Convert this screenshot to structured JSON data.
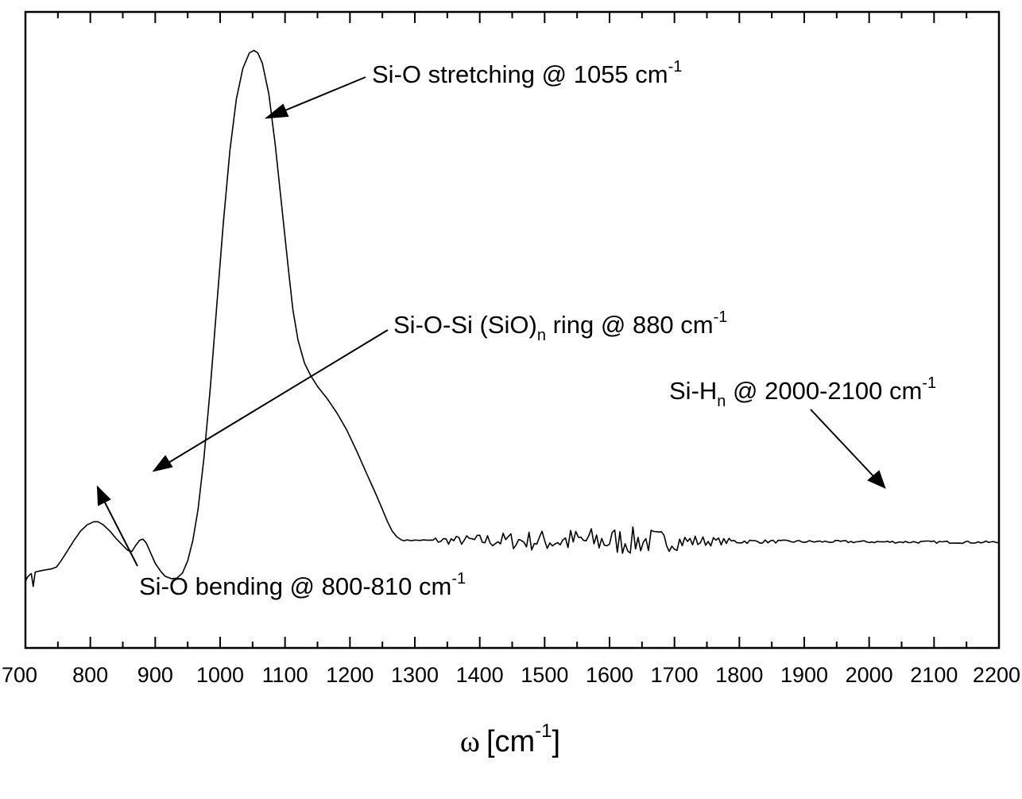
{
  "chart_data": {
    "type": "line",
    "xlabel": {
      "symbol": "ω",
      "bracket_open": "[cm",
      "exponent": "-1",
      "bracket_close": "]"
    },
    "ylabel": "",
    "xlim": [
      700,
      2200
    ],
    "ylim": [
      -0.12,
      1.12
    ],
    "x_ticks": [
      "700",
      "800",
      "900",
      "1000",
      "1100",
      "1200",
      "1300",
      "1400",
      "1500",
      "1600",
      "1700",
      "1800",
      "1900",
      "2000",
      "2100",
      "2200"
    ],
    "y_ticks_labeled": false,
    "grid": false,
    "series": [
      {
        "values": [
          [
            700,
            0.01
          ],
          [
            703,
            0.018
          ],
          [
            706,
            0.022
          ],
          [
            709,
            0.025
          ],
          [
            712,
            0.0
          ],
          [
            715,
            0.028
          ],
          [
            722,
            0.03
          ],
          [
            730,
            0.032
          ],
          [
            740,
            0.034
          ],
          [
            748,
            0.038
          ],
          [
            755,
            0.05
          ],
          [
            765,
            0.07
          ],
          [
            775,
            0.09
          ],
          [
            785,
            0.108
          ],
          [
            795,
            0.12
          ],
          [
            805,
            0.126
          ],
          [
            812,
            0.126
          ],
          [
            820,
            0.12
          ],
          [
            830,
            0.108
          ],
          [
            840,
            0.093
          ],
          [
            850,
            0.08
          ],
          [
            858,
            0.07
          ],
          [
            864,
            0.068
          ],
          [
            870,
            0.08
          ],
          [
            876,
            0.09
          ],
          [
            881,
            0.092
          ],
          [
            886,
            0.085
          ],
          [
            893,
            0.065
          ],
          [
            900,
            0.045
          ],
          [
            908,
            0.03
          ],
          [
            915,
            0.02
          ],
          [
            925,
            0.015
          ],
          [
            933,
            0.016
          ],
          [
            942,
            0.026
          ],
          [
            950,
            0.05
          ],
          [
            958,
            0.09
          ],
          [
            966,
            0.15
          ],
          [
            975,
            0.25
          ],
          [
            985,
            0.39
          ],
          [
            995,
            0.55
          ],
          [
            1005,
            0.71
          ],
          [
            1015,
            0.85
          ],
          [
            1025,
            0.95
          ],
          [
            1035,
            1.01
          ],
          [
            1045,
            1.04
          ],
          [
            1052,
            1.045
          ],
          [
            1058,
            1.04
          ],
          [
            1065,
            1.02
          ],
          [
            1075,
            0.96
          ],
          [
            1085,
            0.86
          ],
          [
            1095,
            0.74
          ],
          [
            1105,
            0.62
          ],
          [
            1112,
            0.54
          ],
          [
            1120,
            0.48
          ],
          [
            1130,
            0.435
          ],
          [
            1140,
            0.41
          ],
          [
            1150,
            0.39
          ],
          [
            1165,
            0.366
          ],
          [
            1180,
            0.338
          ],
          [
            1195,
            0.305
          ],
          [
            1210,
            0.265
          ],
          [
            1225,
            0.222
          ],
          [
            1240,
            0.18
          ],
          [
            1250,
            0.15
          ],
          [
            1258,
            0.126
          ],
          [
            1265,
            0.108
          ],
          [
            1272,
            0.097
          ],
          [
            1280,
            0.09
          ]
        ]
      }
    ],
    "annotations": [
      {
        "name": "stretching",
        "text": "Si-O stretching @ 1055 cm",
        "sup": "-1"
      },
      {
        "name": "ring",
        "text_a": "Si-O-Si (SiO)",
        "sub": "n",
        "text_b": " ring @ 880 cm",
        "sup": "-1"
      },
      {
        "name": "sih",
        "text_a": "Si-H",
        "sub": "n",
        "text_b": " @ 2000-2100 cm",
        "sup": "-1"
      },
      {
        "name": "bending",
        "text": "Si-O bending @ 800-810 cm",
        "sup": "-1"
      }
    ],
    "baseline": {
      "x_start": 1280,
      "x_end": 2200,
      "level": 0.09,
      "noise_peak_x": 1540,
      "noise_amplitude": 0.02
    }
  },
  "colors": {
    "line": "#000000",
    "background": "#ffffff"
  }
}
